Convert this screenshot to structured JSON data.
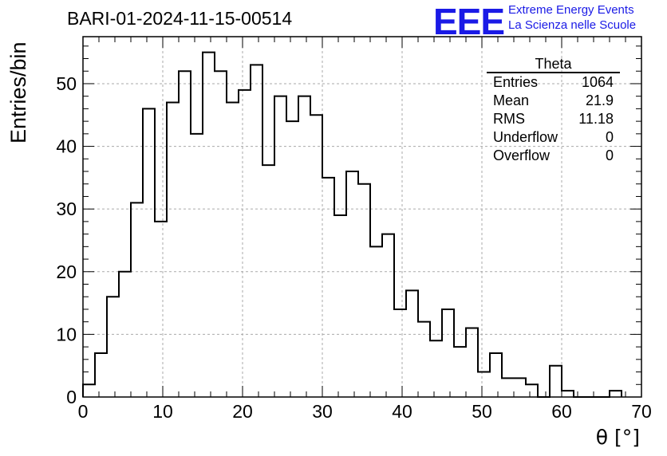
{
  "title": "BARI-01-2024-11-15-00514",
  "logo": {
    "mark": "EEE",
    "line1": "Extreme Energy Events",
    "line2": "La Scienza nelle Scuole"
  },
  "stats": {
    "title": "Theta",
    "rows": [
      {
        "label": "Entries",
        "value": "1064"
      },
      {
        "label": "Mean",
        "value": "21.9"
      },
      {
        "label": "RMS",
        "value": "11.18"
      },
      {
        "label": "Underflow",
        "value": "0"
      },
      {
        "label": "Overflow",
        "value": "0"
      }
    ]
  },
  "chart_data": {
    "type": "bar",
    "style": "step-histogram",
    "xlabel": "θ [°]",
    "ylabel": "Entries/bin",
    "xlim": [
      0,
      70
    ],
    "ylim": [
      0,
      57.5
    ],
    "bin_width": 1.5,
    "x_ticks": [
      0,
      10,
      20,
      30,
      40,
      50,
      60,
      70
    ],
    "y_ticks": [
      0,
      10,
      20,
      30,
      40,
      50
    ],
    "grid": true,
    "line_color": "#000000",
    "values": [
      2,
      7,
      16,
      20,
      31,
      46,
      28,
      47,
      52,
      42,
      55,
      52,
      47,
      49,
      53,
      37,
      48,
      44,
      48,
      45,
      35,
      29,
      36,
      34,
      24,
      26,
      14,
      17,
      12,
      9,
      14,
      8,
      11,
      4,
      7,
      3,
      3,
      2,
      0,
      5,
      1,
      0,
      0,
      0,
      1
    ]
  }
}
